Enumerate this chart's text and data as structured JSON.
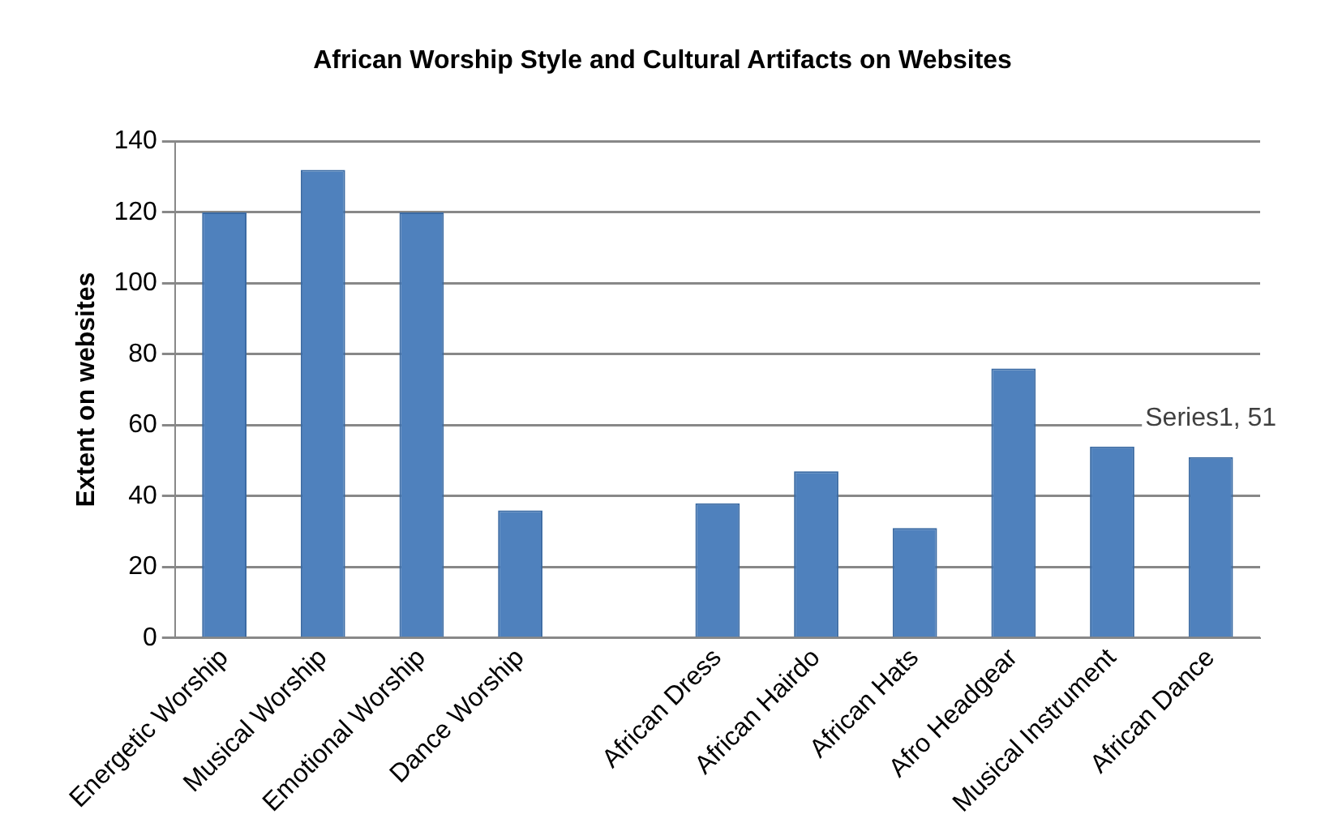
{
  "chart_data": {
    "type": "bar",
    "title": "African Worship Style and Cultural Artifacts on Websites",
    "ylabel": "Extent on websites",
    "categories": [
      "Energetic Worship",
      "Musical Worship",
      "Emotional Worship",
      "Dance Worship",
      null,
      "African Dress",
      "African Hairdo",
      "African Hats",
      "Afro Headgear",
      "Musical Instrument",
      "African Dance"
    ],
    "values": [
      120,
      132,
      120,
      36,
      null,
      38,
      47,
      31,
      76,
      54,
      51
    ],
    "value_labels": [
      null,
      null,
      null,
      null,
      null,
      null,
      null,
      null,
      null,
      null,
      "Series1, 51"
    ],
    "color": "#4f81bd",
    "ylim": [
      0,
      140
    ],
    "yticks": [
      0,
      20,
      40,
      60,
      80,
      100,
      120,
      140
    ],
    "grid": "y",
    "legend": false
  }
}
